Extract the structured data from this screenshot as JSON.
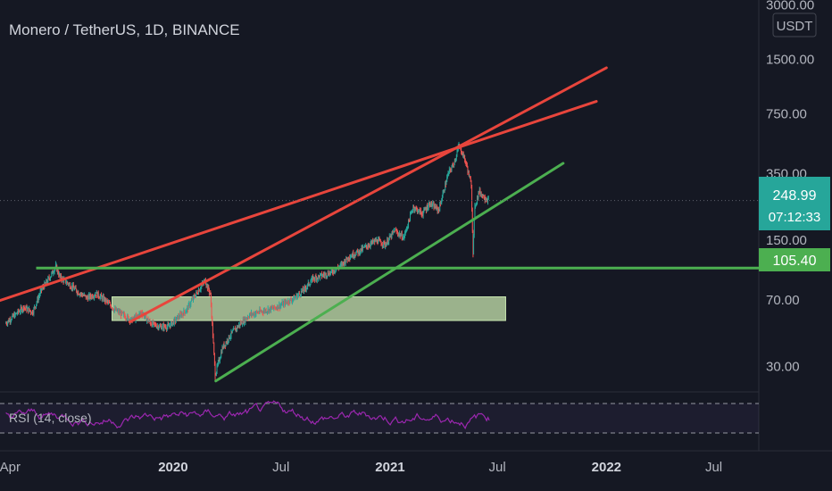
{
  "header": {
    "title": "Monero / TetherUS, 1D, BINANCE",
    "currency": "USDT"
  },
  "colors": {
    "background": "#151823",
    "red_line": "#e8453c",
    "green_line": "#4caf50",
    "zone_fill": "#c8e6b0",
    "price_badge": "#26a69a",
    "level_badge": "#4caf50",
    "rsi_line": "#9c27b0",
    "candle_up": "#26a69a",
    "candle_down": "#ef5350"
  },
  "price_axis": {
    "ticks": [
      "3000.00",
      "1500.00",
      "750.00",
      "350.00",
      "150.00",
      "70.00",
      "30.00"
    ],
    "current_price": "248.99",
    "countdown": "07:12:33",
    "level_price": "105.40"
  },
  "time_axis": {
    "labels": [
      {
        "text": "Apr",
        "bold": false
      },
      {
        "text": "2020",
        "bold": true
      },
      {
        "text": "Jul",
        "bold": false
      },
      {
        "text": "2021",
        "bold": true
      },
      {
        "text": "Jul",
        "bold": false
      },
      {
        "text": "2022",
        "bold": true
      },
      {
        "text": "Jul",
        "bold": false
      }
    ]
  },
  "rsi": {
    "label": "RSI (14, close)",
    "upper": 70,
    "lower": 30
  },
  "chart_data": {
    "type": "line",
    "title": "Monero / TetherUS, 1D, BINANCE",
    "xlabel": "",
    "ylabel": "",
    "y_scale": "log",
    "ylim": [
      22,
      3200
    ],
    "x_range": [
      "2019-03-15",
      "2022-09-15"
    ],
    "grid": false,
    "series": [
      {
        "x": [
          "2019-03-25",
          "2019-04-10",
          "2019-04-25",
          "2019-05-10",
          "2019-05-25",
          "2019-06-10",
          "2019-06-18",
          "2019-06-25",
          "2019-07-10",
          "2019-07-25",
          "2019-08-10",
          "2019-08-25",
          "2019-09-10",
          "2019-09-25",
          "2019-10-10",
          "2019-10-25",
          "2019-11-10",
          "2019-11-25",
          "2019-12-10",
          "2019-12-25",
          "2020-01-10",
          "2020-01-25",
          "2020-02-05",
          "2020-02-15",
          "2020-02-25",
          "2020-03-05",
          "2020-03-13",
          "2020-03-25",
          "2020-04-10",
          "2020-04-25",
          "2020-05-10",
          "2020-05-25",
          "2020-06-10",
          "2020-06-25",
          "2020-07-10",
          "2020-07-25",
          "2020-08-10",
          "2020-08-25",
          "2020-09-10",
          "2020-09-25",
          "2020-10-10",
          "2020-10-25",
          "2020-11-10",
          "2020-11-25",
          "2020-12-10",
          "2020-12-25",
          "2021-01-10",
          "2021-01-25",
          "2021-02-10",
          "2021-02-25",
          "2021-03-10",
          "2021-03-25",
          "2021-04-10",
          "2021-04-20",
          "2021-04-28",
          "2021-05-05",
          "2021-05-12",
          "2021-05-19",
          "2021-05-22",
          "2021-05-25",
          "2021-06-01",
          "2021-06-10",
          "2021-06-17"
        ],
        "values": [
          52,
          58,
          64,
          60,
          80,
          96,
          108,
          94,
          86,
          78,
          72,
          76,
          70,
          62,
          58,
          54,
          60,
          52,
          50,
          50,
          56,
          62,
          72,
          80,
          90,
          75,
          27,
          38,
          46,
          52,
          58,
          60,
          62,
          64,
          68,
          72,
          80,
          92,
          96,
          100,
          108,
          122,
          130,
          140,
          150,
          142,
          170,
          155,
          230,
          210,
          240,
          220,
          350,
          400,
          500,
          450,
          380,
          300,
          130,
          230,
          280,
          260,
          250
        ]
      }
    ]
  },
  "annotations": {
    "red_line_1": {
      "start": [
        "2019-01-01",
        58
      ],
      "end": [
        "2021-12-15",
        880
      ]
    },
    "red_line_2": {
      "start": [
        "2019-10-20",
        53
      ],
      "end": [
        "2022-01-01",
        1350
      ]
    },
    "green_trend": {
      "start": [
        "2020-03-13",
        25
      ],
      "end": [
        "2021-10-20",
        400
      ]
    },
    "horizontal_level": {
      "start": "2019-05-15",
      "price": 105.4
    },
    "zone": {
      "start": "2019-09-20",
      "end": "2021-07-15",
      "top": 73,
      "bottom": 54
    },
    "dotted_level": {
      "price": 248.99
    }
  }
}
